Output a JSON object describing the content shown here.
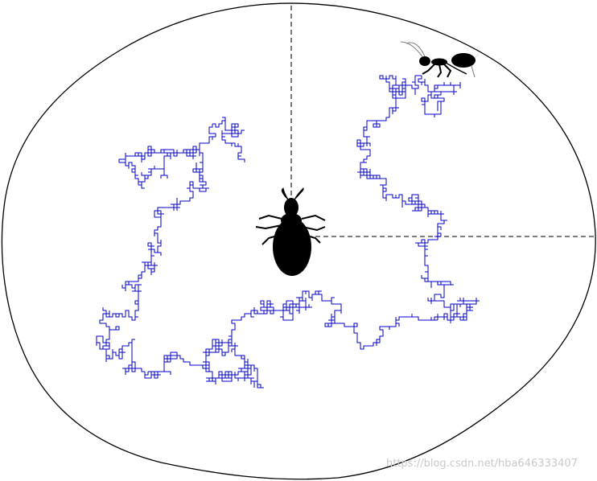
{
  "watermark": "https://blog.csdn.net/hba646333407",
  "colors": {
    "boundary": "#000000",
    "walk": "#0000cc",
    "guide": "#333333",
    "creature": "#000000",
    "watermark": "#c9c9c9"
  },
  "icons": [
    "ant-icon",
    "antlion-larva-icon"
  ],
  "walk_seed": 20210517
}
